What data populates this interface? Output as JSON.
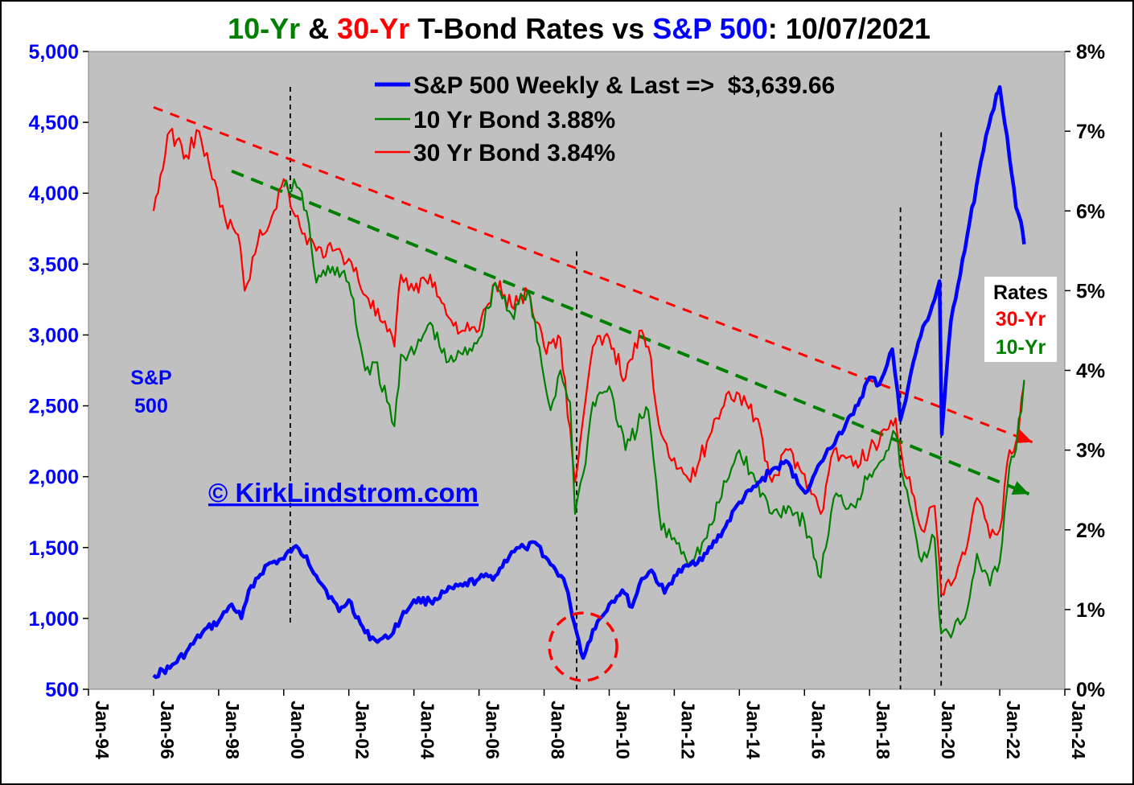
{
  "title": {
    "part1": "10-Yr",
    "part2": " & ",
    "part3": "30-Yr",
    "part4": " T-Bond Rates vs ",
    "part5": "S&P 500",
    "part6": ": 10/07/2021"
  },
  "colors": {
    "sp500": "#0000ff",
    "ten_yr": "#008000",
    "thirty_yr": "#ff0000",
    "plot_bg": "#c0c0c0",
    "text": "#000000"
  },
  "legend": {
    "sp500": "S&P 500 Weekly & Last =>  $3,639.66",
    "ten_yr": "10 Yr Bond 3.88%",
    "thirty_yr": "30 Yr Bond 3.84%"
  },
  "annotations": {
    "sp500_label_line1": "S&P",
    "sp500_label_line2": "500",
    "copyright": "© KirkLindstrom.com",
    "rates_title": "Rates",
    "rates_30": "30-Yr",
    "rates_10": "10-Yr"
  },
  "chart_data": {
    "type": "line",
    "title": "10-Yr & 30-Yr T-Bond Rates vs S&P 500: 10/07/2021",
    "x_tick_labels": [
      "Jan-94",
      "Jan-96",
      "Jan-98",
      "Jan-00",
      "Jan-02",
      "Jan-04",
      "Jan-06",
      "Jan-08",
      "Jan-10",
      "Jan-12",
      "Jan-14",
      "Jan-16",
      "Jan-18",
      "Jan-20",
      "Jan-22",
      "Jan-24"
    ],
    "xlim": [
      1994,
      2024
    ],
    "y_left": {
      "tick_labels": [
        "500",
        "1,000",
        "1,500",
        "2,000",
        "2,500",
        "3,000",
        "3,500",
        "4,000",
        "4,500",
        "5,000"
      ],
      "range": [
        500,
        5000
      ]
    },
    "y_right": {
      "tick_labels": [
        "0%",
        "1%",
        "2%",
        "3%",
        "4%",
        "5%",
        "6%",
        "7%",
        "8%"
      ],
      "range": [
        0,
        8
      ]
    },
    "grid": false,
    "legend_position": "top-center",
    "series": [
      {
        "name": "S&P 500 Weekly & Last =>  $3,639.66",
        "axis": "left",
        "x": [
          1996.0,
          1996.5,
          1997.0,
          1997.5,
          1998.0,
          1998.4,
          1998.7,
          1999.0,
          1999.5,
          2000.0,
          2000.3,
          2000.7,
          2001.0,
          2001.3,
          2001.7,
          2002.0,
          2002.5,
          2002.8,
          2003.2,
          2003.6,
          2004.0,
          2004.5,
          2005.0,
          2005.5,
          2006.0,
          2006.5,
          2007.0,
          2007.4,
          2007.8,
          2008.2,
          2008.6,
          2008.8,
          2009.0,
          2009.2,
          2009.5,
          2010.0,
          2010.4,
          2010.7,
          2011.0,
          2011.3,
          2011.7,
          2012.0,
          2012.5,
          2013.0,
          2013.5,
          2014.0,
          2014.5,
          2015.0,
          2015.5,
          2015.8,
          2016.1,
          2016.5,
          2017.0,
          2017.5,
          2018.0,
          2018.3,
          2018.7,
          2018.95,
          2019.5,
          2020.0,
          2020.15,
          2020.22,
          2020.5,
          2021.0,
          2021.5,
          2021.9,
          2022.0,
          2022.3,
          2022.5,
          2022.65,
          2022.75
        ],
        "values": [
          600,
          650,
          760,
          900,
          980,
          1100,
          1000,
          1230,
          1380,
          1420,
          1500,
          1440,
          1300,
          1200,
          1050,
          1130,
          900,
          850,
          860,
          1000,
          1130,
          1120,
          1190,
          1230,
          1280,
          1300,
          1470,
          1500,
          1520,
          1380,
          1280,
          1100,
          900,
          720,
          920,
          1100,
          1200,
          1080,
          1280,
          1340,
          1180,
          1300,
          1380,
          1460,
          1620,
          1820,
          1930,
          2050,
          2100,
          1950,
          1900,
          2100,
          2280,
          2440,
          2700,
          2650,
          2900,
          2400,
          2950,
          3250,
          3380,
          2300,
          3100,
          3700,
          4300,
          4700,
          4750,
          4250,
          3900,
          3800,
          3639.66
        ]
      },
      {
        "name": "10 Yr Bond 3.88%",
        "axis": "right",
        "x": [
          2000.0,
          2000.4,
          2000.7,
          2001.0,
          2001.5,
          2002.0,
          2002.5,
          2002.8,
          2003.4,
          2003.6,
          2004.0,
          2004.5,
          2005.0,
          2005.5,
          2006.0,
          2006.5,
          2007.0,
          2007.5,
          2008.0,
          2008.2,
          2008.5,
          2008.8,
          2008.95,
          2009.2,
          2009.5,
          2010.0,
          2010.5,
          2011.0,
          2011.2,
          2011.6,
          2012.0,
          2012.5,
          2013.0,
          2013.6,
          2014.0,
          2014.5,
          2015.0,
          2015.5,
          2016.0,
          2016.5,
          2016.9,
          2017.5,
          2018.0,
          2018.8,
          2019.0,
          2019.6,
          2020.0,
          2020.2,
          2020.5,
          2021.0,
          2021.3,
          2021.7,
          2022.0,
          2022.3,
          2022.5,
          2022.75
        ],
        "values": [
          6.3,
          6.3,
          6.0,
          5.1,
          5.3,
          5.1,
          4.0,
          4.1,
          3.3,
          4.2,
          4.2,
          4.6,
          4.1,
          4.2,
          4.4,
          5.1,
          4.7,
          5.0,
          3.9,
          3.5,
          4.0,
          3.6,
          2.2,
          2.7,
          3.6,
          3.8,
          3.0,
          3.4,
          3.5,
          2.0,
          1.9,
          1.6,
          1.9,
          2.6,
          3.0,
          2.6,
          2.2,
          2.3,
          2.1,
          1.4,
          2.4,
          2.3,
          2.7,
          3.2,
          2.7,
          1.6,
          1.9,
          0.7,
          0.65,
          1.0,
          1.7,
          1.3,
          1.6,
          2.8,
          3.0,
          3.88
        ]
      },
      {
        "name": "30 Yr Bond 3.84%",
        "axis": "right",
        "x": [
          1996.0,
          1996.5,
          1997.0,
          1997.4,
          1997.8,
          1998.2,
          1998.6,
          1998.8,
          1999.2,
          1999.7,
          2000.0,
          2000.5,
          2001.0,
          2001.5,
          2002.0,
          2002.6,
          2003.4,
          2003.6,
          2004.0,
          2004.5,
          2005.0,
          2005.5,
          2006.0,
          2006.5,
          2007.0,
          2007.5,
          2008.0,
          2008.5,
          2008.95,
          2009.2,
          2009.5,
          2010.0,
          2010.5,
          2011.0,
          2011.2,
          2011.6,
          2012.0,
          2012.5,
          2013.0,
          2013.6,
          2014.0,
          2014.5,
          2015.0,
          2015.5,
          2016.0,
          2016.5,
          2016.9,
          2017.5,
          2018.0,
          2018.8,
          2019.0,
          2019.6,
          2020.0,
          2020.2,
          2020.5,
          2021.0,
          2021.3,
          2021.7,
          2022.0,
          2022.3,
          2022.5,
          2022.75
        ],
        "values": [
          6.0,
          7.0,
          6.7,
          7.0,
          6.4,
          5.9,
          5.7,
          5.0,
          5.6,
          6.0,
          6.4,
          5.8,
          5.5,
          5.5,
          5.4,
          4.9,
          4.3,
          5.2,
          5.0,
          5.2,
          4.7,
          4.5,
          4.5,
          5.1,
          4.8,
          5.0,
          4.3,
          4.4,
          2.6,
          3.4,
          4.3,
          4.4,
          3.9,
          4.5,
          4.3,
          3.2,
          2.9,
          2.6,
          3.1,
          3.7,
          3.7,
          3.4,
          2.6,
          3.0,
          2.7,
          2.2,
          3.0,
          2.8,
          3.0,
          3.4,
          2.9,
          2.0,
          2.3,
          1.2,
          1.3,
          1.8,
          2.4,
          1.9,
          2.0,
          3.0,
          3.1,
          3.84
        ]
      }
    ],
    "trendlines": [
      {
        "name": "30-Yr trend",
        "x": [
          1996.0,
          2023.0
        ],
        "values": [
          7.3,
          3.1
        ]
      },
      {
        "name": "10-Yr trend",
        "x": [
          1998.4,
          2022.9
        ],
        "values": [
          6.5,
          2.45
        ]
      }
    ],
    "vlines": [
      {
        "x": 2000.2,
        "from_y_left": 950,
        "to_y_left": 4750
      },
      {
        "x": 2009.0,
        "from_y_left": 500,
        "to_y_left": 3590
      },
      {
        "x": 2018.95,
        "from_y_left": 500,
        "to_y_left": 3900
      },
      {
        "x": 2020.2,
        "from_y_left": 500,
        "to_y_left": 4430
      }
    ],
    "circle_marker": {
      "x": 2009.2,
      "y_left": 800
    }
  }
}
